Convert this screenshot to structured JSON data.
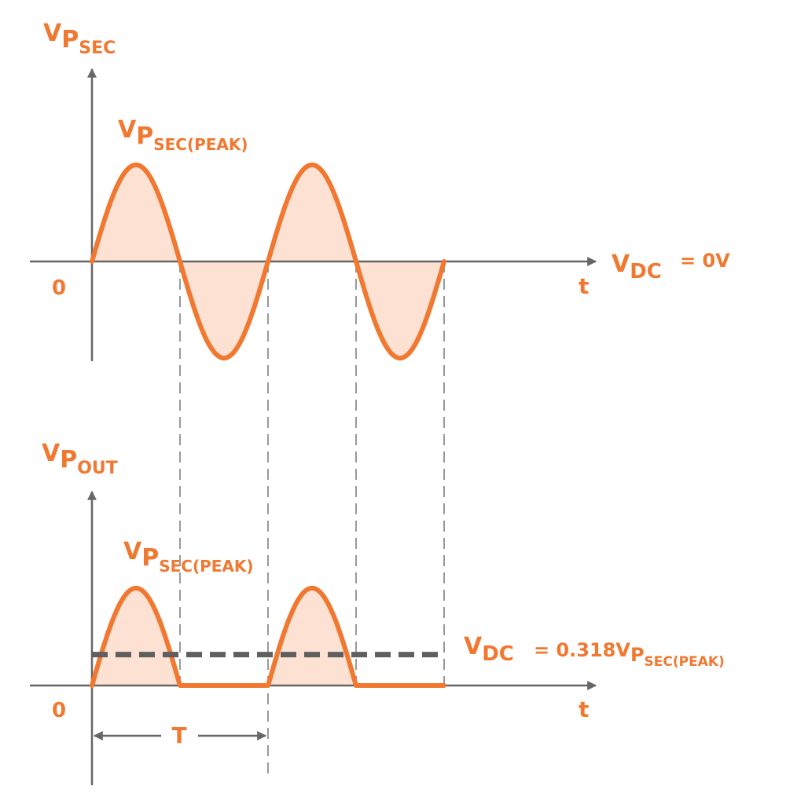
{
  "colors": {
    "waveform": "#f07830",
    "fill": "#fde1d2",
    "axis": "#666666",
    "guide": "#999999",
    "dc_line": "#5f5f5f",
    "label": "#f07830"
  },
  "top": {
    "ylabel_main": "V",
    "ylabel_sub": "P",
    "ylabel_subsub": "SEC",
    "peak_main": "V",
    "peak_sub": "P",
    "peak_subsub": "SEC(PEAK)",
    "origin": "0",
    "xlabel": "t",
    "vdc_main": "V",
    "vdc_sub": "DC",
    "vdc_value": "= 0V",
    "waveform": "full sine wave, 2 cycles",
    "cycles": 2
  },
  "bottom": {
    "ylabel_main": "V",
    "ylabel_sub": "P",
    "ylabel_subsub": "OUT",
    "peak_main": "V",
    "peak_sub": "P",
    "peak_subsub": "SEC(PEAK)",
    "origin": "0",
    "xlabel": "t",
    "vdc_main": "V",
    "vdc_sub": "DC",
    "vdc_value": "= 0.318V",
    "vdc_value_sub": "P",
    "vdc_value_subsub": "SEC(PEAK)",
    "period_label": "T",
    "waveform": "half-wave rectified sine, 2 cycles",
    "dc_level_fraction": 0.318
  }
}
